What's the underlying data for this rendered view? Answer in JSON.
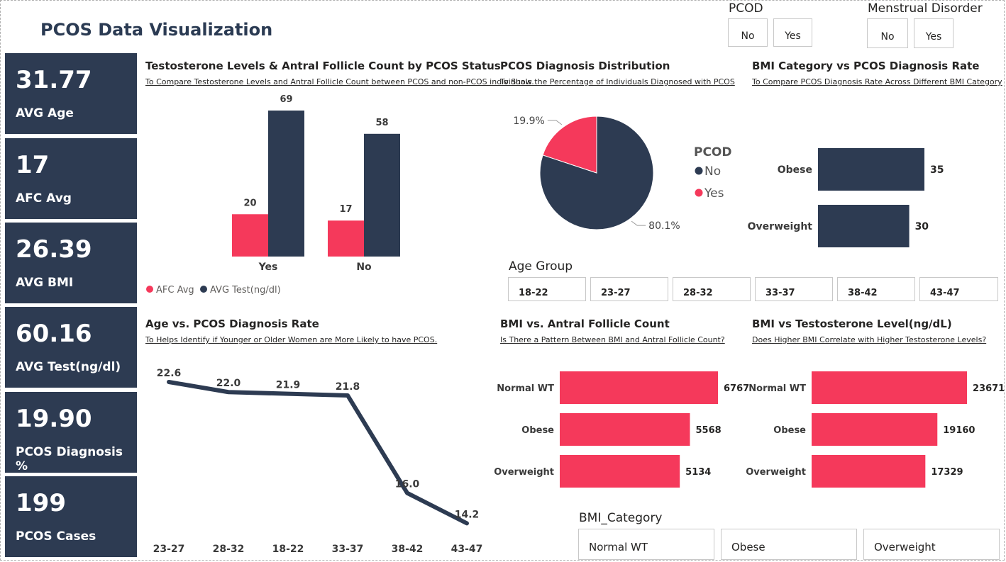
{
  "page": {
    "title": "PCOS Data Visualization"
  },
  "kpis": [
    {
      "value": "31.77",
      "label": "AVG Age"
    },
    {
      "value": "17",
      "label": "AFC Avg"
    },
    {
      "value": "26.39",
      "label": "AVG BMI"
    },
    {
      "value": "60.16",
      "label": "AVG Test(ng/dl)"
    },
    {
      "value": "19.90",
      "label": "PCOS Diagnosis %"
    },
    {
      "value": "199",
      "label": "PCOS Cases"
    }
  ],
  "slicers": {
    "pcod": {
      "title": "PCOD",
      "options": [
        "No",
        "Yes"
      ]
    },
    "menstrual": {
      "title": "Menstrual Disorder",
      "options": [
        "No",
        "Yes"
      ]
    },
    "age_group": {
      "title": "Age Group",
      "options": [
        "18-22",
        "23-27",
        "28-32",
        "33-37",
        "38-42",
        "43-47"
      ]
    },
    "bmi_category": {
      "title": "BMI_Category",
      "options": [
        "Normal WT",
        "Obese",
        "Overweight"
      ]
    }
  },
  "colors": {
    "navy": "#2d3b52",
    "pink": "#f5395b"
  },
  "chart_data": [
    {
      "id": "testosterone_afc",
      "type": "bar",
      "title": "Testosterone Levels & Antral Follicle Count by PCOS Status",
      "subtitle": "To Compare Testosterone Levels and Antral Follicle Count between PCOS and non-PCOS individuals.",
      "categories": [
        "Yes",
        "No"
      ],
      "series": [
        {
          "name": "AFC Avg",
          "values": [
            20,
            17
          ],
          "color": "#f5395b"
        },
        {
          "name": "AVG Test(ng/dl)",
          "values": [
            69,
            58
          ],
          "color": "#2d3b52"
        }
      ],
      "ylim": [
        0,
        72
      ],
      "legend": "bottom-left"
    },
    {
      "id": "diagnosis_pie",
      "type": "pie",
      "title": "PCOS Diagnosis Distribution",
      "subtitle": "To Show the Percentage of Individuals Diagnosed with PCOS",
      "legend_title": "PCOD",
      "slices": [
        {
          "label": "No",
          "value": 80.1,
          "display": "80.1%",
          "color": "#2d3b52"
        },
        {
          "label": "Yes",
          "value": 19.9,
          "display": "19.9%",
          "color": "#f5395b"
        }
      ],
      "legend": "right"
    },
    {
      "id": "bmi_rate",
      "type": "bar",
      "orientation": "horizontal",
      "title": "BMI Category vs PCOS Diagnosis Rate",
      "subtitle": "To Compare PCOS Diagnosis Rate Across Different BMI Category",
      "categories": [
        "Obese",
        "Overweight"
      ],
      "values": [
        35,
        30
      ],
      "xlim": [
        0,
        35
      ]
    },
    {
      "id": "age_rate",
      "type": "line",
      "title": "Age vs. PCOS Diagnosis Rate",
      "subtitle": "To Helps Identify if Younger or Older Women are More Likely to have PCOS.",
      "categories": [
        "23-27",
        "28-32",
        "18-22",
        "33-37",
        "38-42",
        "43-47"
      ],
      "values": [
        22.6,
        22.0,
        21.9,
        21.8,
        16.0,
        14.2
      ],
      "labels": [
        "22.6",
        "22.0",
        "21.9",
        "21.8",
        "16.0",
        "14.2"
      ]
    },
    {
      "id": "bmi_afc",
      "type": "bar",
      "orientation": "horizontal",
      "title": "BMI vs. Antral Follicle Count",
      "subtitle": "Is There a Pattern Between BMI and Antral Follicle Count?",
      "categories": [
        "Normal WT",
        "Obese",
        "Overweight"
      ],
      "values": [
        6767,
        5568,
        5134
      ]
    },
    {
      "id": "bmi_test",
      "type": "bar",
      "orientation": "horizontal",
      "title": "BMI vs Testosterone Level(ng/dL)",
      "subtitle": "Does Higher BMI Correlate with Higher Testosterone Levels?",
      "categories": [
        "Normal WT",
        "Obese",
        "Overweight"
      ],
      "values": [
        23671,
        19160,
        17329
      ]
    }
  ]
}
